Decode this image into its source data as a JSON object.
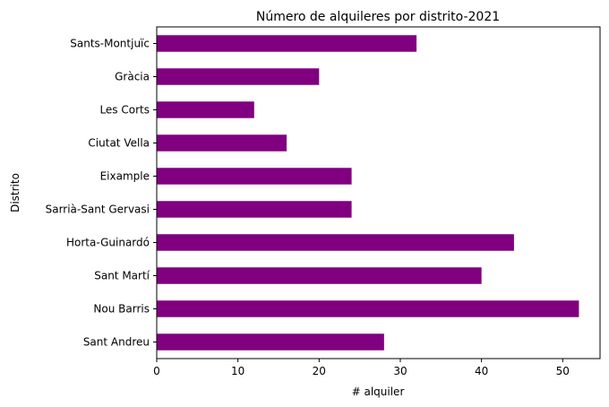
{
  "chart_data": {
    "type": "bar",
    "orientation": "horizontal",
    "title": "Número de alquileres por distrito-2021",
    "xlabel": "# alquiler",
    "ylabel": "Distrito",
    "categories": [
      "Sants-Montjuïc",
      "Gràcia",
      "Les Corts",
      "Ciutat Vella",
      "Eixample",
      "Sarrià-Sant Gervasi",
      "Horta-Guinardó",
      "Sant Martí",
      "Nou Barris",
      "Sant Andreu"
    ],
    "values": [
      32,
      20,
      12,
      16,
      24,
      24,
      44,
      40,
      52,
      28
    ],
    "xlim": [
      0,
      54.6
    ],
    "xticks": [
      0,
      10,
      20,
      30,
      40,
      50
    ],
    "bar_color": "#800080",
    "grid": false,
    "legend": "none"
  }
}
